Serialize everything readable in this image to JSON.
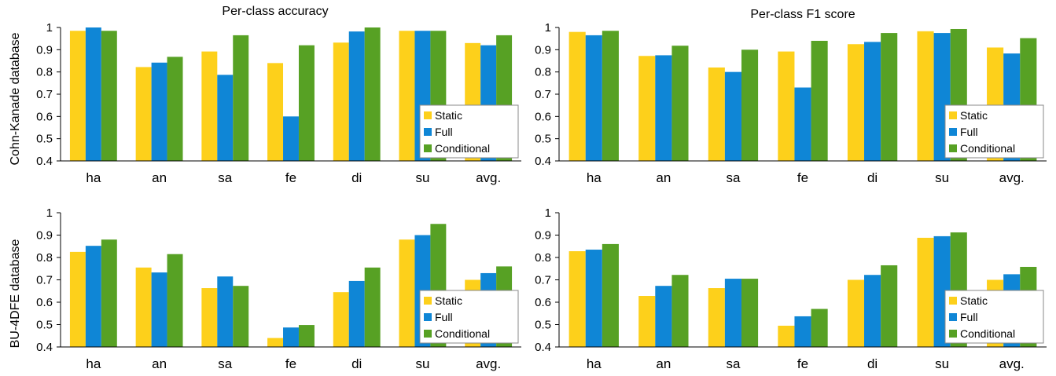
{
  "row_labels": [
    "Cohn-Kanade database",
    "BU-4DFE database"
  ],
  "chart_data": [
    {
      "type": "bar",
      "title": "Per-class accuracy",
      "categories": [
        "ha",
        "an",
        "sa",
        "fe",
        "di",
        "su",
        "avg."
      ],
      "ylim": [
        0.4,
        1
      ],
      "yticks": [
        "0.4",
        "0.5",
        "0.6",
        "0.7",
        "0.8",
        "0.9",
        "1"
      ],
      "legend": "inside right",
      "series": [
        {
          "name": "Static",
          "color": "#fdd01b",
          "values": [
            0.985,
            0.822,
            0.892,
            0.84,
            0.932,
            0.985,
            0.93
          ]
        },
        {
          "name": "Full",
          "color": "#0f86d6",
          "values": [
            1.0,
            0.842,
            0.787,
            0.6,
            0.982,
            0.985,
            0.92
          ]
        },
        {
          "name": "Conditional",
          "color": "#57a124",
          "values": [
            0.985,
            0.868,
            0.965,
            0.92,
            1.0,
            0.985,
            0.965
          ]
        }
      ]
    },
    {
      "type": "bar",
      "title": "Per-class F1 score",
      "categories": [
        "ha",
        "an",
        "sa",
        "fe",
        "di",
        "su",
        "avg."
      ],
      "ylim": [
        0.4,
        1
      ],
      "yticks": [
        "0.4",
        "0.5",
        "0.6",
        "0.7",
        "0.8",
        "0.9",
        "1"
      ],
      "legend": "inside right",
      "series": [
        {
          "name": "Static",
          "color": "#fdd01b",
          "values": [
            0.98,
            0.872,
            0.82,
            0.892,
            0.925,
            0.983,
            0.91
          ]
        },
        {
          "name": "Full",
          "color": "#0f86d6",
          "values": [
            0.965,
            0.875,
            0.8,
            0.73,
            0.935,
            0.975,
            0.883
          ]
        },
        {
          "name": "Conditional",
          "color": "#57a124",
          "values": [
            0.985,
            0.918,
            0.9,
            0.94,
            0.975,
            0.993,
            0.952
          ]
        }
      ]
    },
    {
      "type": "bar",
      "title": "",
      "categories": [
        "ha",
        "an",
        "sa",
        "fe",
        "di",
        "su",
        "avg."
      ],
      "ylim": [
        0.4,
        1
      ],
      "yticks": [
        "0.4",
        "0.5",
        "0.6",
        "0.7",
        "0.8",
        "0.9",
        "1"
      ],
      "legend": "inside right",
      "series": [
        {
          "name": "Static",
          "color": "#fdd01b",
          "values": [
            0.825,
            0.755,
            0.663,
            0.44,
            0.645,
            0.88,
            0.7
          ]
        },
        {
          "name": "Full",
          "color": "#0f86d6",
          "values": [
            0.852,
            0.733,
            0.715,
            0.487,
            0.695,
            0.9,
            0.73
          ]
        },
        {
          "name": "Conditional",
          "color": "#57a124",
          "values": [
            0.88,
            0.815,
            0.673,
            0.498,
            0.755,
            0.95,
            0.76
          ]
        }
      ]
    },
    {
      "type": "bar",
      "title": "",
      "categories": [
        "ha",
        "an",
        "sa",
        "fe",
        "di",
        "su",
        "avg."
      ],
      "ylim": [
        0.4,
        1
      ],
      "yticks": [
        "0.4",
        "0.5",
        "0.6",
        "0.7",
        "0.8",
        "0.9",
        "1"
      ],
      "legend": "inside right",
      "series": [
        {
          "name": "Static",
          "color": "#fdd01b",
          "values": [
            0.828,
            0.628,
            0.663,
            0.495,
            0.7,
            0.888,
            0.7
          ]
        },
        {
          "name": "Full",
          "color": "#0f86d6",
          "values": [
            0.835,
            0.673,
            0.705,
            0.537,
            0.722,
            0.895,
            0.725
          ]
        },
        {
          "name": "Conditional",
          "color": "#57a124",
          "values": [
            0.86,
            0.722,
            0.705,
            0.57,
            0.765,
            0.912,
            0.758
          ]
        }
      ]
    }
  ]
}
